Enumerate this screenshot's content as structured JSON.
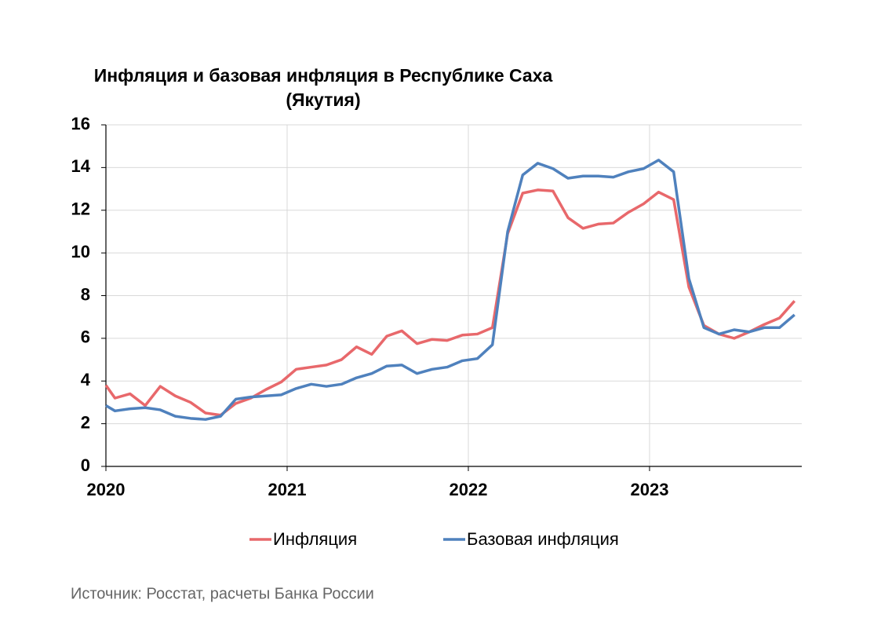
{
  "chart_data": {
    "type": "line",
    "title": "Инфляция и базовая инфляция в Республике Саха",
    "subtitle": "(Якутия)",
    "source": "Источник: Росстат, расчеты Банка России",
    "x": [
      2020,
      2020.05,
      2020.133,
      2020.217,
      2020.3,
      2020.383,
      2020.467,
      2020.55,
      2020.633,
      2020.717,
      2020.8,
      2020.883,
      2020.967,
      2021.05,
      2021.133,
      2021.217,
      2021.3,
      2021.383,
      2021.467,
      2021.55,
      2021.633,
      2021.717,
      2021.8,
      2021.883,
      2021.967,
      2022.05,
      2022.133,
      2022.217,
      2022.3,
      2022.383,
      2022.467,
      2022.55,
      2022.633,
      2022.717,
      2022.8,
      2022.883,
      2022.967,
      2023.05,
      2023.133,
      2023.217,
      2023.3,
      2023.383,
      2023.467,
      2023.55,
      2023.633,
      2023.717,
      2023.8
    ],
    "series": [
      {
        "name": "Инфляция",
        "color": "#e8686b",
        "values": [
          3.8,
          3.2,
          3.4,
          2.85,
          3.75,
          3.3,
          3.0,
          2.5,
          2.4,
          2.95,
          3.2,
          3.6,
          3.95,
          4.55,
          4.65,
          4.75,
          5.0,
          5.6,
          5.25,
          6.1,
          6.35,
          5.75,
          5.95,
          5.9,
          6.15,
          6.2,
          6.5,
          10.9,
          12.8,
          12.95,
          12.9,
          11.65,
          11.15,
          11.35,
          11.4,
          11.9,
          12.3,
          12.85,
          12.5,
          8.4,
          6.6,
          6.2,
          6.0,
          6.3,
          6.65,
          6.95,
          7.75
        ]
      },
      {
        "name": "Базовая инфляция",
        "color": "#4f81bd",
        "values": [
          2.85,
          2.6,
          2.7,
          2.75,
          2.65,
          2.35,
          2.25,
          2.2,
          2.35,
          3.15,
          3.25,
          3.3,
          3.35,
          3.65,
          3.85,
          3.75,
          3.85,
          4.15,
          4.35,
          4.7,
          4.75,
          4.35,
          4.55,
          4.65,
          4.95,
          5.05,
          5.7,
          11.0,
          13.65,
          14.2,
          13.95,
          13.5,
          13.6,
          13.6,
          13.55,
          13.8,
          13.95,
          14.35,
          13.8,
          8.8,
          6.5,
          6.2,
          6.4,
          6.3,
          6.5,
          6.5,
          7.1
        ]
      }
    ],
    "xlim": [
      2020,
      2023.84
    ],
    "xticks": [
      2020,
      2021,
      2022,
      2023
    ],
    "ylim": [
      0,
      16
    ],
    "yticks": [
      0,
      2,
      4,
      6,
      8,
      10,
      12,
      14,
      16
    ],
    "grid": true,
    "legend": "bottom"
  }
}
